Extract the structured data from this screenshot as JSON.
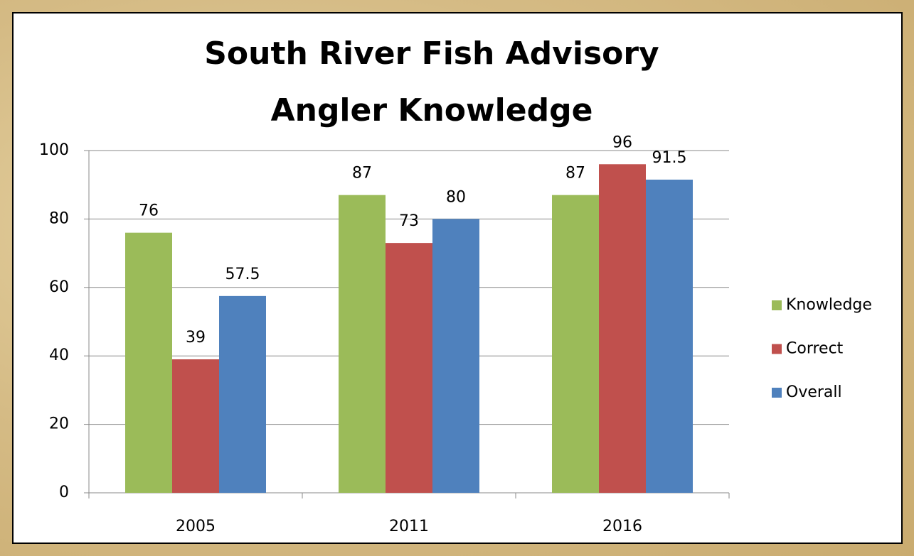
{
  "chart_data": {
    "type": "bar",
    "title": [
      "South River Fish Advisory",
      "Angler Knowledge"
    ],
    "categories": [
      "2005",
      "2011",
      "2016"
    ],
    "series": [
      {
        "name": "Knowledge",
        "color": "#9bbb59",
        "values": [
          76,
          87,
          87
        ]
      },
      {
        "name": "Correct",
        "color": "#c0504d",
        "values": [
          39,
          73,
          96
        ]
      },
      {
        "name": "Overall",
        "color": "#4f81bd",
        "values": [
          57.5,
          80,
          91.5
        ]
      }
    ],
    "ylim": [
      0,
      100
    ],
    "yticks": [
      0,
      20,
      40,
      60,
      80,
      100
    ],
    "grid": true,
    "legend": "right"
  }
}
